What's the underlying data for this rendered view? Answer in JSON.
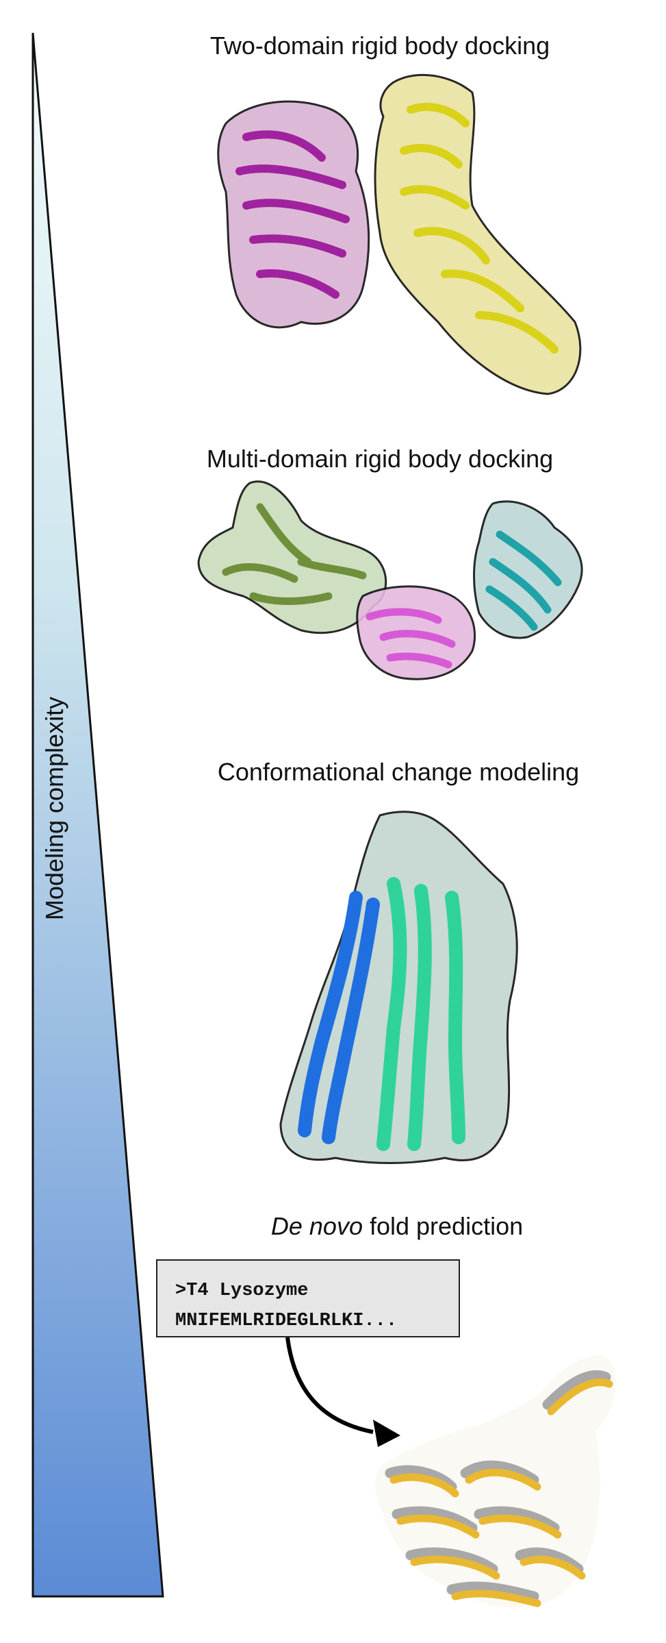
{
  "panels": [
    {
      "title": "Two-domain rigid body docking"
    },
    {
      "title": "Multi-domain rigid body docking"
    },
    {
      "title": "Conformational change modeling"
    },
    {
      "title_italic": "De novo",
      "title_rest": " fold prediction"
    }
  ],
  "axis_label": "Modeling complexity",
  "sequence_box": {
    "line1": ">T4 Lysozyme",
    "line2": "MNIFEMLRIDEGLRLKI..."
  },
  "colors": {
    "gradient_top": "#eaf8f9",
    "gradient_bottom": "#5c8dd6",
    "magenta": "#a0229e",
    "yellow": "#e6e02a",
    "olive": "#6f8f3a",
    "pink": "#d65ad6",
    "teal": "#1fa3a8",
    "blue": "#1f6fe0",
    "green": "#2fd39a",
    "gold": "#e8b830",
    "silver": "#a8a8a8"
  }
}
